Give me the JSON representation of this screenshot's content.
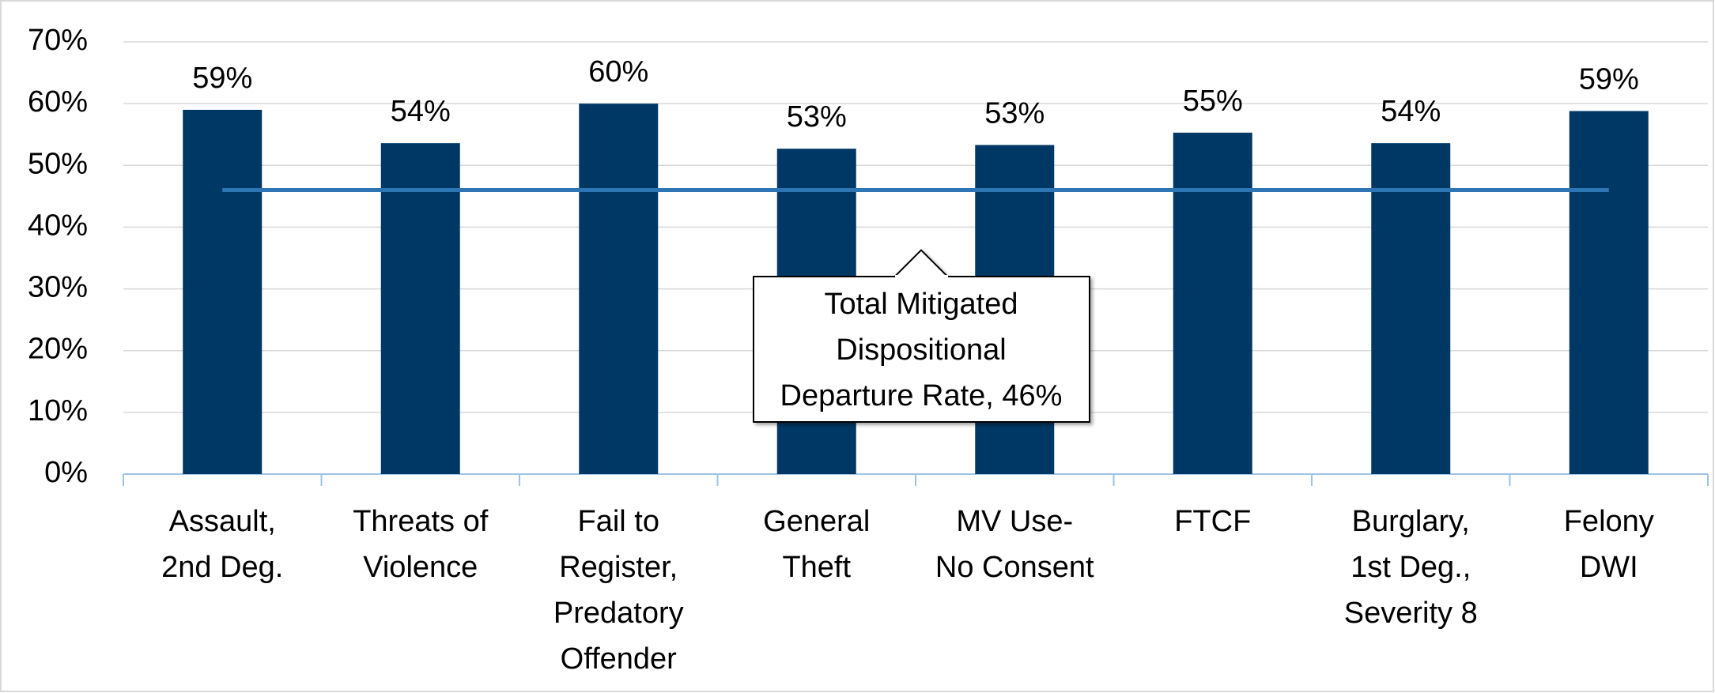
{
  "chart_data": {
    "type": "bar",
    "categories": [
      "Assault,\n2nd Deg.",
      "Threats of\nViolence",
      "Fail to\nRegister,\nPredatory\nOffender",
      "General\nTheft",
      "MV Use-\nNo Consent",
      "FTCF",
      "Burglary,\n1st Deg.,\nSeverity 8",
      "Felony\nDWI"
    ],
    "values": [
      59.0,
      53.6,
      60.0,
      52.7,
      53.3,
      55.3,
      53.6,
      58.8
    ],
    "value_labels": [
      "59%",
      "54%",
      "60%",
      "53%",
      "53%",
      "55%",
      "54%",
      "59%"
    ],
    "color": "#003865",
    "ylim": [
      0,
      70
    ],
    "yticks": [
      {
        "value": 0,
        "label": "0%"
      },
      {
        "value": 10,
        "label": "10%"
      },
      {
        "value": 20,
        "label": "20%"
      },
      {
        "value": 30,
        "label": "30%"
      },
      {
        "value": 40,
        "label": "40%"
      },
      {
        "value": 50,
        "label": "50%"
      },
      {
        "value": 60,
        "label": "60%"
      },
      {
        "value": 70,
        "label": "70%"
      }
    ],
    "grid": true,
    "reference_line": {
      "value": 46,
      "color": "#2e75b6",
      "label": "Total Mitigated\nDispositional\nDeparture Rate, 46%"
    }
  }
}
